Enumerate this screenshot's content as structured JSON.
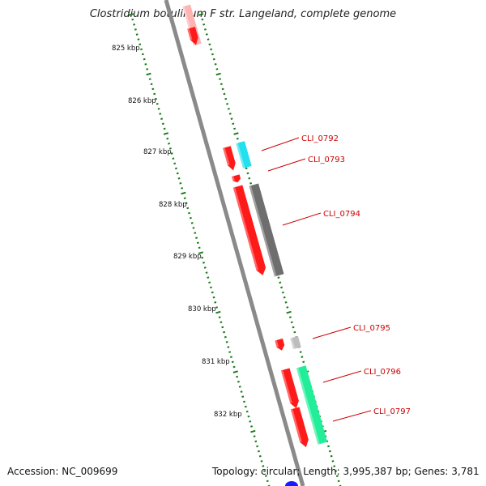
{
  "title": "Clostridium botulinum F str. Langeland, complete genome",
  "footer": {
    "accession": "Accession: NC_009699",
    "summary": "Topology: circular; Length: 3,995,387 bp; Genes: 3,781"
  },
  "colors": {
    "backbone": "#8a8a8a",
    "ruler": "#1a7a1a",
    "gene_forward": "#ff1a1a",
    "gene_label": "#cc0000",
    "cyan": "#22e0ee",
    "gray": "#6e6e6e",
    "light_gray": "#bdbdbd",
    "mint": "#22ee99",
    "pink": "#ffb3b3",
    "blue": "#1a1aff"
  },
  "ruler_ticks": [
    "825 kbp",
    "826 kbp",
    "827 kbp",
    "828 kbp",
    "829 kbp",
    "830 kbp",
    "831 kbp",
    "832 kbp"
  ],
  "gene_labels": [
    "CLI_0792",
    "CLI_0793",
    "CLI_0794",
    "CLI_0795",
    "CLI_0796",
    "CLI_0797"
  ]
}
